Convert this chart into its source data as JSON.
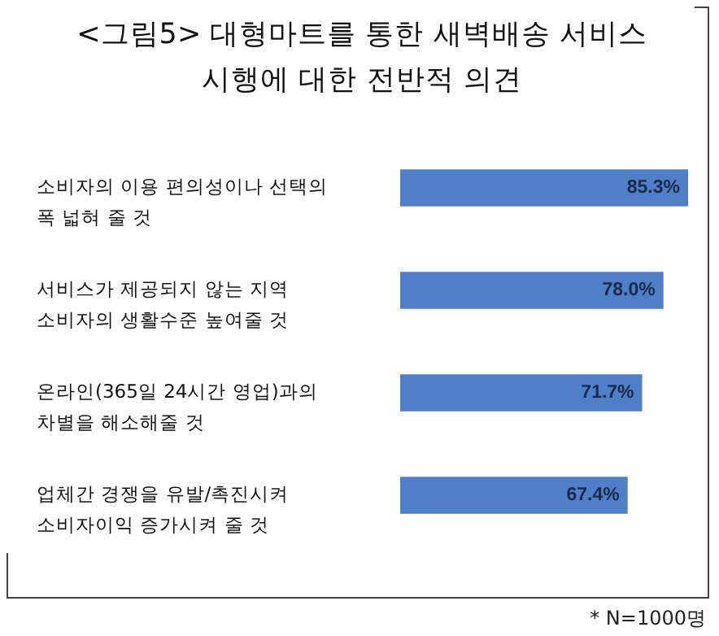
{
  "chart_data": {
    "type": "bar",
    "orientation": "horizontal",
    "title": "<그림5> 대형마트를 통한 새벽배송 서비스\n시행에 대한 전반적 의견",
    "categories": [
      "소비자의 이용 편의성이나 선택의\n폭 넓혀 줄 것",
      "서비스가 제공되지 않는 지역\n소비자의 생활수준 높여줄 것",
      "온라인(365일 24시간 영업)과의\n차별을 해소해줄 것",
      "업체간 경쟁을 유발/촉진시켜\n소비자이익 증가시켜 줄 것"
    ],
    "values": [
      85.3,
      78.0,
      71.7,
      67.4
    ],
    "value_labels": [
      "85.3%",
      "78.0%",
      "71.7%",
      "67.4%"
    ],
    "color": "#4f7fc6",
    "annotations": [
      "* N=1000명"
    ]
  }
}
